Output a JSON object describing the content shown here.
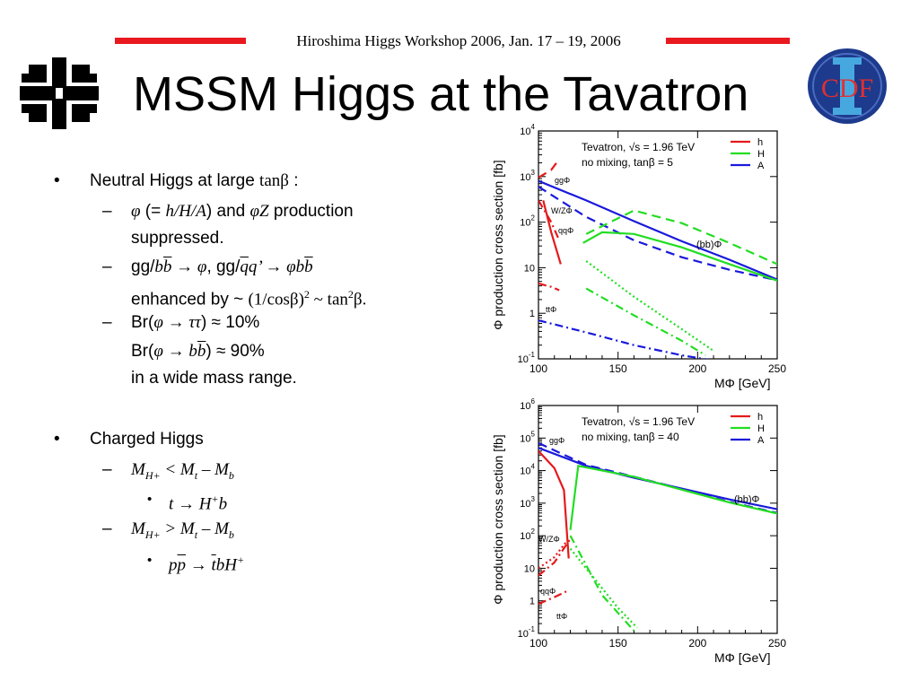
{
  "header": {
    "workshop": "Hiroshima Higgs Workshop 2006, Jan. 17 – 19, 2006",
    "title": "MSSM Higgs at the Tavatron"
  },
  "logos": {
    "left": "fermilab-logo",
    "right": "cdf-logo",
    "right_text": "CDF"
  },
  "bullets": {
    "neutral": {
      "main_text": "Neutral Higgs at large ",
      "main_math": "tanβ",
      "main_tail": " :",
      "sub1": {
        "phi": "φ",
        "open": " (= ",
        "hha": "h/H/A",
        "close": ") and ",
        "phiz": "φZ",
        "tail": " production",
        "line2": "suppressed."
      },
      "sub2": {
        "gg": "gg/",
        "b": "b",
        "bbar": "b",
        "arrow": " → φ",
        "mid": ", gg/",
        "q": "q",
        "qbar": "q",
        "prime": "’ → φ",
        "b2": "b",
        "bbar2": "b",
        "line2_text": "enhanced by ~ ",
        "line2_math": "(1/cosβ)",
        "sup": "2",
        "line2_tail": " ~ tan",
        "sup2": "2",
        "line2_end": "β."
      },
      "sub3": {
        "br1_pre": "Br(",
        "br1_math": "φ → ττ",
        "br1_post": ") ≈ 10%",
        "br2_pre": "Br(",
        "br2_math": "φ → b",
        "br2_bbar": "b",
        "br2_post": ")  ≈ 90%",
        "line3": "in a wide mass range."
      }
    },
    "charged": {
      "main": "Charged Higgs",
      "sub1": {
        "m": "M",
        "sub": "H+",
        "rest": " < M",
        "t": "t",
        "minus": " – M",
        "b": "b",
        "item": "t → H",
        "item_sup": "+",
        "item_tail": "b"
      },
      "sub2": {
        "m": "M",
        "sub": "H+",
        "rest": " > M",
        "t": "t",
        "minus": " – M",
        "b": "b",
        "item_p": "p",
        "item_pbar": "p",
        "item_arrow": " → ",
        "item_tbar": "t",
        "item_b": "bH",
        "item_sup": "+"
      }
    }
  },
  "chart_data": [
    {
      "type": "line",
      "text_box": [
        "Tevatron, √s = 1.96 TeV",
        "no mixing, tanβ = 5"
      ],
      "xlabel": "MΦ [GeV]",
      "ylabel": "Φ production cross section [fb]",
      "xlim": [
        100,
        250
      ],
      "ylim": [
        0.1,
        10000
      ],
      "yscale": "log",
      "xticks": [
        "100",
        "150",
        "200",
        "250"
      ],
      "yticks": [
        "10-1",
        "1",
        "10",
        "102",
        "103",
        "104"
      ],
      "legend": [
        {
          "name": "h",
          "color": "#e41a1c"
        },
        {
          "name": "H",
          "color": "#22dd22"
        },
        {
          "name": "A",
          "color": "#1a1adb"
        }
      ],
      "annotations": [
        "ggΦ",
        "W/ZΦ",
        "qqΦ",
        "(bb)Φ",
        "ttΦ"
      ],
      "series": [
        {
          "process": "bbΦ",
          "color": "#1a1adb",
          "style": "solid",
          "x": [
            100,
            130,
            160,
            190,
            220,
            250
          ],
          "y": [
            800,
            300,
            105,
            38,
            15,
            5.5
          ]
        },
        {
          "process": "bbΦ",
          "color": "#1a1adb",
          "style": "dashed",
          "x": [
            100,
            130,
            160,
            190,
            220,
            250
          ],
          "y": [
            600,
            130,
            40,
            17,
            9,
            5.3
          ]
        },
        {
          "process": "bbΦ",
          "color": "#22dd22",
          "style": "solid",
          "x": [
            128,
            140,
            160,
            190,
            220,
            250
          ],
          "y": [
            35,
            60,
            55,
            28,
            12,
            5.2
          ]
        },
        {
          "process": "ggΦ",
          "color": "#22dd22",
          "style": "dashed",
          "x": [
            130,
            160,
            190,
            220,
            250
          ],
          "y": [
            55,
            180,
            95,
            35,
            12
          ]
        },
        {
          "process": "ggΦ",
          "color": "#e41a1c",
          "style": "dashed",
          "x": [
            100,
            108,
            113
          ],
          "y": [
            950,
            1400,
            2400
          ]
        },
        {
          "process": "bbΦ",
          "color": "#e41a1c",
          "style": "solid",
          "x": [
            103,
            108,
            114
          ],
          "y": [
            300,
            60,
            12
          ]
        },
        {
          "process": "W/ZΦ",
          "color": "#e41a1c",
          "style": "dash-dot",
          "x": [
            100,
            108,
            113
          ],
          "y": [
            300,
            100,
            40
          ]
        },
        {
          "process": "qqΦ",
          "color": "#e41a1c",
          "style": "dash-dot",
          "x": [
            100,
            108,
            113
          ],
          "y": [
            4.5,
            3.8,
            3.2
          ]
        },
        {
          "process": "W/ZΦ",
          "color": "#22dd22",
          "style": "dash-dot",
          "x": [
            130,
            160,
            190,
            205
          ],
          "y": [
            3.5,
            0.9,
            0.25,
            0.12
          ]
        },
        {
          "process": "qqΦ",
          "color": "#22dd22",
          "style": "dotted",
          "x": [
            130,
            160,
            190,
            210
          ],
          "y": [
            14,
            2.3,
            0.45,
            0.15
          ]
        },
        {
          "process": "ttΦ",
          "color": "#1a1adb",
          "style": "dash-dot",
          "x": [
            100,
            130,
            160,
            190,
            220,
            250
          ],
          "y": [
            0.7,
            0.38,
            0.2,
            0.12,
            0.08,
            0.06
          ]
        }
      ]
    },
    {
      "type": "line",
      "text_box": [
        "Tevatron, √s = 1.96 TeV",
        "no mixing, tanβ = 40"
      ],
      "xlabel": "MΦ [GeV]",
      "ylabel": "Φ production cross section [fb]",
      "xlim": [
        100,
        250
      ],
      "ylim": [
        0.1,
        1000000
      ],
      "yscale": "log",
      "xticks": [
        "100",
        "150",
        "200",
        "250"
      ],
      "yticks": [
        "10-1",
        "1",
        "10",
        "102",
        "103",
        "104",
        "105",
        "106"
      ],
      "legend": [
        {
          "name": "h",
          "color": "#e41a1c"
        },
        {
          "name": "H",
          "color": "#22dd22"
        },
        {
          "name": "A",
          "color": "#1a1adb"
        }
      ],
      "annotations": [
        "ggΦ",
        "W/ZΦ",
        "qqΦ",
        "(bb)Φ",
        "ttΦ"
      ],
      "series": [
        {
          "process": "bbΦ",
          "color": "#1a1adb",
          "style": "solid",
          "x": [
            100,
            130,
            160,
            190,
            220,
            250
          ],
          "y": [
            50000,
            14000,
            6000,
            2800,
            1300,
            650
          ]
        },
        {
          "process": "bbΦ",
          "color": "#1a1adb",
          "style": "dashed",
          "x": [
            100,
            130,
            160,
            190,
            220,
            250
          ],
          "y": [
            70000,
            15000,
            6500,
            2700,
            1100,
            500
          ]
        },
        {
          "process": "bbΦ",
          "color": "#22dd22",
          "style": "solid",
          "x": [
            120,
            125,
            160,
            190,
            220,
            250
          ],
          "y": [
            150,
            14000,
            6500,
            2600,
            1050,
            480
          ]
        },
        {
          "process": "bbΦ",
          "color": "#e41a1c",
          "style": "solid",
          "x": [
            100,
            110,
            116,
            119
          ],
          "y": [
            40000,
            12000,
            2500,
            20
          ]
        },
        {
          "process": "W/ZΦ",
          "color": "#e41a1c",
          "style": "dash-dot",
          "x": [
            100,
            110,
            120
          ],
          "y": [
            6,
            15,
            80
          ]
        },
        {
          "process": "qqΦ",
          "color": "#e41a1c",
          "style": "dotted",
          "x": [
            100,
            110,
            118
          ],
          "y": [
            10,
            22,
            70
          ]
        },
        {
          "process": "W/ZΦ",
          "color": "#22dd22",
          "style": "dash-dot",
          "x": [
            120,
            140,
            160
          ],
          "y": [
            100,
            1.5,
            0.12
          ]
        },
        {
          "process": "qqΦ",
          "color": "#22dd22",
          "style": "dotted",
          "x": [
            120,
            150,
            162
          ],
          "y": [
            40,
            0.6,
            0.15
          ]
        },
        {
          "process": "ttΦ",
          "color": "#e41a1c",
          "style": "dash-dot",
          "x": [
            100,
            110,
            118
          ],
          "y": [
            0.8,
            1.3,
            2
          ]
        }
      ]
    }
  ]
}
